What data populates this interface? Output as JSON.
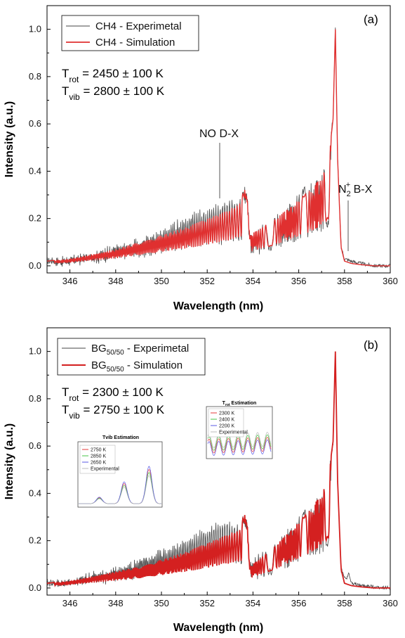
{
  "chart_data": [
    {
      "panel": "(a)",
      "type": "line",
      "xlabel": "Wavelength (nm)",
      "ylabel": "Intensity (a.u.)",
      "xlim": [
        345,
        360
      ],
      "ylim": [
        -0.03,
        1.1
      ],
      "xticks": [
        346,
        348,
        350,
        352,
        354,
        356,
        358,
        360
      ],
      "yticks": [
        0.0,
        0.2,
        0.4,
        0.6,
        0.8,
        1.0
      ],
      "tick_labels_x": [
        "346",
        "348",
        "350",
        "352",
        "354",
        "356",
        "358",
        "360"
      ],
      "tick_labels_y": [
        "0.0",
        "0.2",
        "0.4",
        "0.6",
        "0.8",
        "1.0"
      ],
      "legend": [
        "CH4 - Experimetal",
        "CH4 - Simulation"
      ],
      "t_rot": {
        "sym": "T",
        "sub": "rot",
        "rest": " = 2450 ± 100 K"
      },
      "t_vib": {
        "sym": "T",
        "sub": "vib",
        "rest": " = 2800 ± 100 K"
      },
      "annotations": {
        "no": {
          "text": "NO D-X",
          "x": 352.6
        },
        "n2": {
          "text": "N",
          "sub": "2",
          "sup": "+",
          "rest": " B-X",
          "x": 358.2
        }
      },
      "envelope": {
        "x": [
          345.0,
          346.0,
          347.0,
          348.0,
          349.0,
          350.0,
          351.0,
          352.0,
          353.0,
          353.5,
          353.6,
          353.75,
          353.85,
          354.5,
          355.0,
          355.5,
          356.0,
          356.5,
          357.0,
          357.3,
          357.5,
          357.6,
          357.7,
          357.85,
          358.0,
          358.3,
          358.7,
          359.3,
          360.0
        ],
        "sim": [
          0.02,
          0.03,
          0.05,
          0.07,
          0.1,
          0.13,
          0.16,
          0.2,
          0.24,
          0.27,
          0.34,
          0.3,
          0.13,
          0.17,
          0.2,
          0.24,
          0.28,
          0.32,
          0.38,
          0.44,
          0.62,
          1.0,
          0.45,
          0.08,
          0.02,
          0.01,
          0.005,
          0.0,
          0.0
        ],
        "exp": [
          0.02,
          0.03,
          0.05,
          0.08,
          0.11,
          0.15,
          0.2,
          0.24,
          0.27,
          0.28,
          0.34,
          0.3,
          0.12,
          0.17,
          0.2,
          0.25,
          0.3,
          0.34,
          0.4,
          0.45,
          0.63,
          1.0,
          0.45,
          0.08,
          0.03,
          0.02,
          0.01,
          0.0,
          0.0
        ]
      },
      "series": [
        {
          "name": "CH4 - Experimetal",
          "color": "#444444"
        },
        {
          "name": "CH4 - Simulation",
          "color": "#e03030"
        }
      ]
    },
    {
      "panel": "(b)",
      "type": "line",
      "xlabel": "Wavelength (nm)",
      "ylabel": "Intensity (a.u.)",
      "xlim": [
        345,
        360
      ],
      "ylim": [
        -0.03,
        1.1
      ],
      "xticks": [
        346,
        348,
        350,
        352,
        354,
        356,
        358,
        360
      ],
      "yticks": [
        0.0,
        0.2,
        0.4,
        0.6,
        0.8,
        1.0
      ],
      "tick_labels_x": [
        "346",
        "348",
        "350",
        "352",
        "354",
        "356",
        "358",
        "360"
      ],
      "tick_labels_y": [
        "0.0",
        "0.2",
        "0.4",
        "0.6",
        "0.8",
        "1.0"
      ],
      "legend": [
        {
          "base": "BG",
          "sub": "50/50",
          "rest": " - Experimetal"
        },
        {
          "base": "BG",
          "sub": "50/50",
          "rest": " - Simulation"
        }
      ],
      "t_rot": {
        "sym": "T",
        "sub": "rot",
        "rest": " = 2300 ± 100 K"
      },
      "t_vib": {
        "sym": "T",
        "sub": "vib",
        "rest": " = 2750 ± 100 K"
      },
      "envelope": {
        "x": [
          345.0,
          346.0,
          347.0,
          348.0,
          349.0,
          350.0,
          351.0,
          352.0,
          352.7,
          353.5,
          353.6,
          353.75,
          353.85,
          354.5,
          355.0,
          355.5,
          356.0,
          356.5,
          357.0,
          357.3,
          357.5,
          357.6,
          357.7,
          357.85,
          358.0,
          358.3,
          358.7,
          359.3,
          360.0
        ],
        "sim": [
          0.02,
          0.03,
          0.05,
          0.07,
          0.09,
          0.12,
          0.15,
          0.19,
          0.22,
          0.25,
          0.33,
          0.28,
          0.09,
          0.14,
          0.18,
          0.23,
          0.28,
          0.33,
          0.4,
          0.47,
          0.62,
          1.0,
          0.45,
          0.08,
          0.02,
          0.01,
          0.005,
          0.0,
          0.0
        ],
        "exp": [
          0.02,
          0.03,
          0.06,
          0.08,
          0.12,
          0.16,
          0.2,
          0.25,
          0.28,
          0.26,
          0.32,
          0.28,
          0.1,
          0.15,
          0.19,
          0.24,
          0.3,
          0.34,
          0.4,
          0.46,
          0.62,
          1.0,
          0.45,
          0.08,
          0.05,
          0.02,
          0.01,
          0.005,
          0.0
        ]
      },
      "series": [
        {
          "name": "BG50/50 - Experimetal",
          "color": "#444444"
        },
        {
          "name": "BG50/50 - Simulation",
          "color": "#d42020"
        }
      ],
      "insets": [
        {
          "title": "Tvib Estimation",
          "legend": [
            {
              "label": "2750 K",
              "color": "#e63a3a"
            },
            {
              "label": "2850 K",
              "color": "#47c447"
            },
            {
              "label": "2650 K",
              "color": "#5a5ae6"
            },
            {
              "label": "Experimental",
              "color": "#bbbbbb"
            }
          ]
        },
        {
          "title": {
            "base": "T",
            "sub": "rot",
            "rest": " Estimation"
          },
          "legend": [
            {
              "label": "2300 K",
              "color": "#e63a3a"
            },
            {
              "label": "2400 K",
              "color": "#47c447"
            },
            {
              "label": "2200 K",
              "color": "#5a5ae6"
            },
            {
              "label": "Experimental",
              "color": "#bbbbbb"
            }
          ]
        }
      ]
    }
  ],
  "panel_labels": [
    "(a)",
    "(b)"
  ]
}
